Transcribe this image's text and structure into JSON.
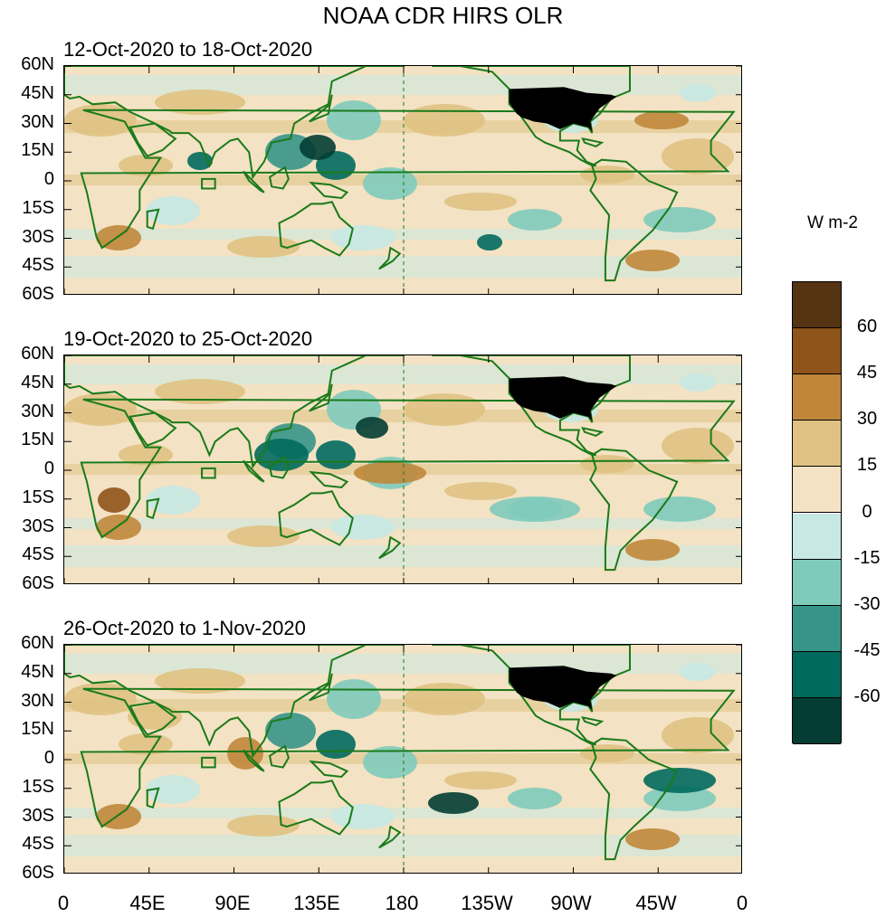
{
  "title": "NOAA CDR HIRS OLR",
  "units": "W m-2",
  "panels": [
    {
      "title": "12-Oct-2020 to 18-Oct-2020"
    },
    {
      "title": "19-Oct-2020 to 25-Oct-2020"
    },
    {
      "title": "26-Oct-2020 to 1-Nov-2020"
    }
  ],
  "lat_labels": [
    "60N",
    "45N",
    "30N",
    "15N",
    "0",
    "15S",
    "30S",
    "45S",
    "60S"
  ],
  "lon_labels": [
    "0",
    "45E",
    "90E",
    "135E",
    "180",
    "135W",
    "90W",
    "45W",
    "0"
  ],
  "colorbar": {
    "labels": [
      "60",
      "45",
      "30",
      "15",
      "0",
      "-15",
      "-30",
      "-45",
      "-60"
    ],
    "colors": [
      "#553413",
      "#8f5419",
      "#c0873a",
      "#dfc283",
      "#f3e2c3",
      "#c6e9e3",
      "#7fcbbb",
      "#369588",
      "#016a5e",
      "#033d33"
    ]
  },
  "colors": {
    "coast": "#1a7a1a",
    "land_black": "#000000",
    "neutral": "#f3e2c3"
  }
}
